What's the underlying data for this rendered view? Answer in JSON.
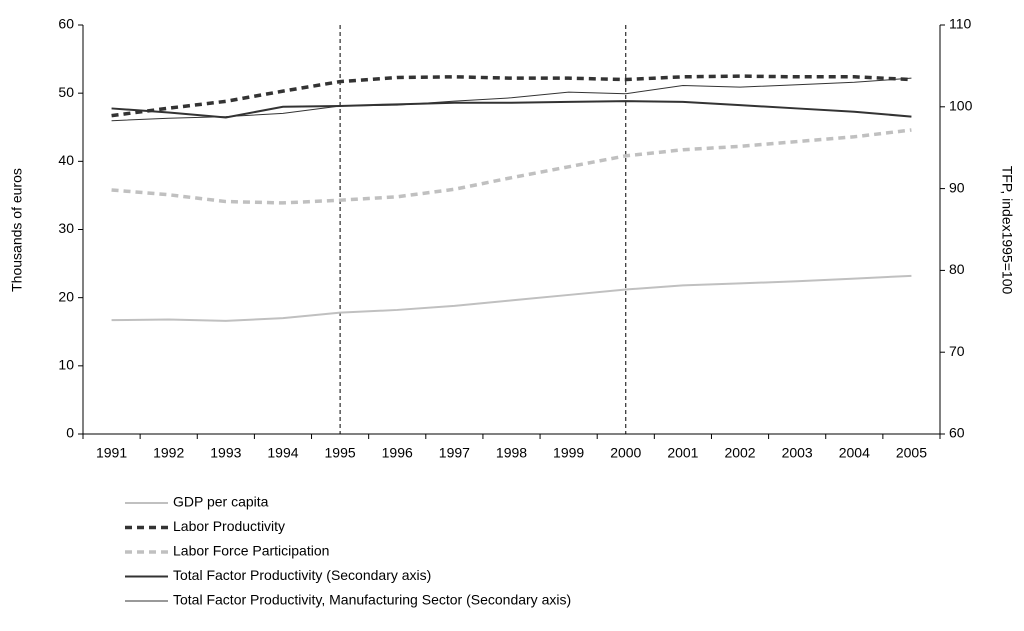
{
  "chart_data": {
    "type": "line",
    "categories": [
      "1991",
      "1992",
      "1993",
      "1994",
      "1995",
      "1996",
      "1997",
      "1998",
      "1999",
      "2000",
      "2001",
      "2002",
      "2003",
      "2004",
      "2005"
    ],
    "y_label": "Thousands of euros",
    "y2_label": "TFP, index1995=100",
    "ylim": [
      0,
      60
    ],
    "yticks": [
      0,
      10,
      20,
      30,
      40,
      50,
      60
    ],
    "y2lim": [
      60,
      110
    ],
    "y2ticks": [
      60,
      70,
      80,
      90,
      100,
      110
    ],
    "vlines": [
      "1995",
      "2000"
    ],
    "series": [
      {
        "name": "GDP per capita",
        "color": "#c0c0c0",
        "dash": false,
        "width": 2,
        "values": [
          16.7,
          16.8,
          16.6,
          17.0,
          17.8,
          18.2,
          18.8,
          19.6,
          20.4,
          21.2,
          21.8,
          22.1,
          22.4,
          22.8,
          23.2
        ]
      },
      {
        "name": "Labor Productivity",
        "color": "#333333",
        "dash": true,
        "width": 3.5,
        "values": [
          46.7,
          47.8,
          48.8,
          50.3,
          51.7,
          52.3,
          52.4,
          52.2,
          52.2,
          52.0,
          52.4,
          52.5,
          52.4,
          52.4,
          52.0
        ]
      },
      {
        "name": "Labor Force Participation",
        "color": "#c0c0c0",
        "dash": true,
        "width": 3.5,
        "values": [
          35.8,
          35.1,
          34.1,
          33.9,
          34.3,
          34.8,
          35.9,
          37.6,
          39.2,
          40.8,
          41.7,
          42.2,
          42.9,
          43.6,
          44.6
        ]
      },
      {
        "name": "Total Factor Productivity (Secondary axis)",
        "color": "#333333",
        "dash": false,
        "width": 2,
        "axis": "y2",
        "values": [
          99.8,
          99.3,
          98.7,
          100.0,
          100.1,
          100.3,
          100.5,
          100.5,
          100.6,
          100.7,
          100.6,
          100.2,
          99.8,
          99.4,
          98.8
        ]
      },
      {
        "name": "Total Factor Productivity, Manufacturing Sector (Secondary axis)",
        "color": "#333333",
        "dash": false,
        "width": 1,
        "axis": "y2",
        "values": [
          98.3,
          98.6,
          98.8,
          99.2,
          100.1,
          100.2,
          100.7,
          101.1,
          101.8,
          101.6,
          102.6,
          102.4,
          102.7,
          103.0,
          103.5
        ]
      }
    ]
  }
}
